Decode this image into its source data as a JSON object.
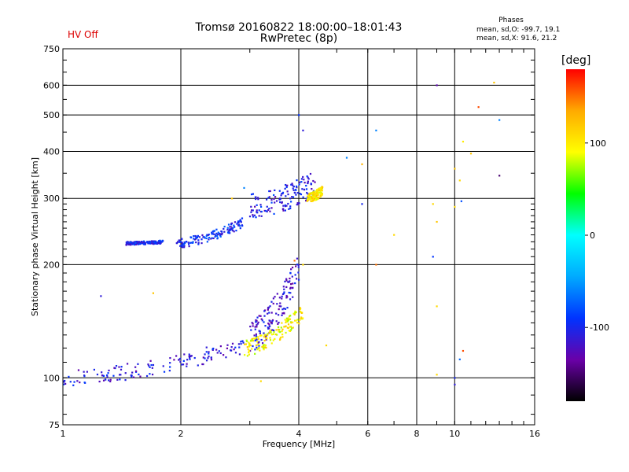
{
  "header": {
    "status": "HV Off",
    "title_line1": "Tromsø 20160822 18:00:00–18:01:43",
    "title_line2": "RwPretec (8p)",
    "phases_title": "Phases",
    "phases_o": "mean, sd,O: -99.7, 19.1",
    "phases_x": "mean, sd,X:  91.6, 21.2"
  },
  "colorbar": {
    "title": "[deg]",
    "ticks": [
      "100",
      "0",
      "-100"
    ],
    "range": [
      -180,
      180
    ],
    "colors": [
      "#000000",
      "#6a00a8",
      "#0033ff",
      "#00aaff",
      "#00ffff",
      "#00ff00",
      "#ffff00",
      "#ffaa00",
      "#ff0000"
    ]
  },
  "chart_data": {
    "type": "scatter",
    "xlabel": "Frequency [MHz]",
    "ylabel": "Stationary phase Virtual Height [km]",
    "xscale": "log2",
    "yscale": "log",
    "xlim": [
      1,
      16
    ],
    "ylim": [
      75,
      750
    ],
    "x_ticks": [
      "1",
      "2",
      "4",
      "6",
      "8",
      "10",
      "16"
    ],
    "x_tick_values": [
      1,
      2,
      4,
      6,
      8,
      10,
      16
    ],
    "y_ticks": [
      "750",
      "600",
      "500",
      "400",
      "300",
      "200",
      "100",
      "75"
    ],
    "y_tick_values": [
      750,
      600,
      500,
      400,
      300,
      200,
      100,
      75
    ],
    "grid": true,
    "color_variable": "phase (deg)",
    "clusters": [
      {
        "mode": "O",
        "f_start": 1.0,
        "f_end": 2.9,
        "h_start": 100,
        "h_end": 122,
        "spread": 0.05,
        "phase": -110
      },
      {
        "mode": "O",
        "f_start": 1.45,
        "f_end": 1.8,
        "h_start": 228,
        "h_end": 230,
        "spread": 0.01,
        "phase": -100
      },
      {
        "mode": "O",
        "f_start": 1.95,
        "f_end": 2.9,
        "h_start": 228,
        "h_end": 260,
        "spread": 0.03,
        "phase": -95
      },
      {
        "mode": "O",
        "f_start": 3.0,
        "f_end": 4.0,
        "h_start": 130,
        "h_end": 195,
        "spread": 0.1,
        "phase": -115
      },
      {
        "mode": "O",
        "f_start": 3.0,
        "f_end": 4.4,
        "h_start": 285,
        "h_end": 330,
        "spread": 0.08,
        "phase": -105
      },
      {
        "mode": "X",
        "f_start": 2.9,
        "f_end": 4.1,
        "h_start": 120,
        "h_end": 150,
        "spread": 0.05,
        "phase": 95
      },
      {
        "mode": "X",
        "f_start": 4.2,
        "f_end": 4.6,
        "h_start": 300,
        "h_end": 315,
        "spread": 0.03,
        "phase": 105
      }
    ],
    "isolated_points": [
      {
        "x": 9.0,
        "y": 600,
        "phase": -130
      },
      {
        "x": 11.5,
        "y": 525,
        "phase": 160
      },
      {
        "x": 12.6,
        "y": 610,
        "phase": 120
      },
      {
        "x": 13.0,
        "y": 485,
        "phase": -60
      },
      {
        "x": 13.0,
        "y": 345,
        "phase": -150
      },
      {
        "x": 10.5,
        "y": 425,
        "phase": 100
      },
      {
        "x": 11.0,
        "y": 395,
        "phase": 120
      },
      {
        "x": 10.0,
        "y": 360,
        "phase": 120
      },
      {
        "x": 10.3,
        "y": 335,
        "phase": 110
      },
      {
        "x": 10.4,
        "y": 295,
        "phase": -80
      },
      {
        "x": 10.0,
        "y": 285,
        "phase": 110
      },
      {
        "x": 8.8,
        "y": 290,
        "phase": 110
      },
      {
        "x": 9.0,
        "y": 260,
        "phase": 120
      },
      {
        "x": 7.0,
        "y": 240,
        "phase": 110
      },
      {
        "x": 6.3,
        "y": 455,
        "phase": -60
      },
      {
        "x": 5.8,
        "y": 370,
        "phase": 130
      },
      {
        "x": 5.3,
        "y": 385,
        "phase": -60
      },
      {
        "x": 8.8,
        "y": 210,
        "phase": -90
      },
      {
        "x": 6.3,
        "y": 200,
        "phase": 150
      },
      {
        "x": 9.0,
        "y": 155,
        "phase": 110
      },
      {
        "x": 10.5,
        "y": 118,
        "phase": 160
      },
      {
        "x": 10.3,
        "y": 112,
        "phase": -70
      },
      {
        "x": 10.0,
        "y": 100,
        "phase": -100
      },
      {
        "x": 10.0,
        "y": 96,
        "phase": -110
      },
      {
        "x": 9.0,
        "y": 102,
        "phase": 110
      },
      {
        "x": 3.2,
        "y": 98,
        "phase": 110
      },
      {
        "x": 4.7,
        "y": 122,
        "phase": 110
      },
      {
        "x": 1.25,
        "y": 165,
        "phase": -110
      },
      {
        "x": 1.7,
        "y": 168,
        "phase": 120
      },
      {
        "x": 2.7,
        "y": 300,
        "phase": 120
      },
      {
        "x": 2.9,
        "y": 320,
        "phase": -60
      },
      {
        "x": 4.0,
        "y": 500,
        "phase": -90
      },
      {
        "x": 4.1,
        "y": 455,
        "phase": -110
      },
      {
        "x": 5.8,
        "y": 290,
        "phase": -100
      },
      {
        "x": 4.1,
        "y": 200,
        "phase": 110
      },
      {
        "x": 3.9,
        "y": 205,
        "phase": 150
      }
    ]
  }
}
